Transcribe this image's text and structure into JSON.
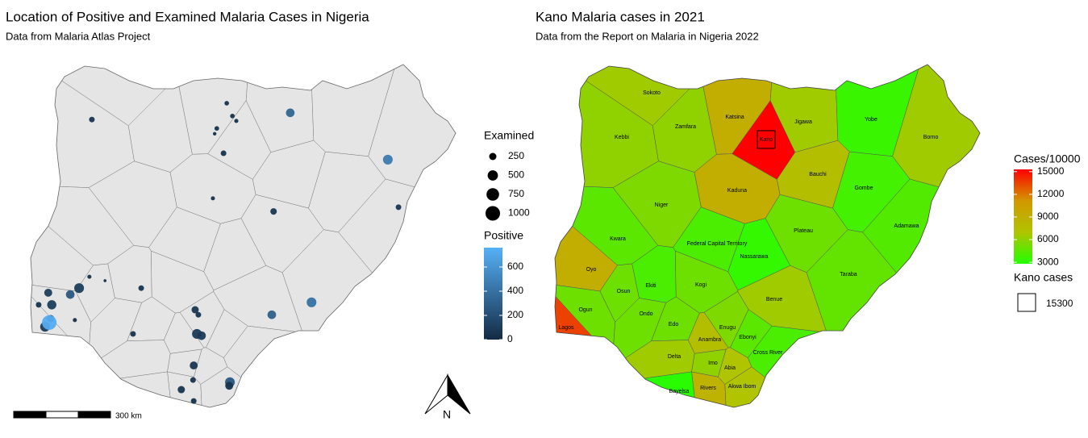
{
  "left": {
    "title": "Location of Positive and Examined Malaria Cases in Nigeria",
    "subtitle": "Data from Malaria Atlas Project",
    "points": {
      "lon": [
        4.38,
        8.18,
        8.34,
        8.45,
        7.9,
        7.84,
        8.09,
        9.97,
        12.72,
        13.02,
        7.79,
        9.5,
        4.02,
        3.77,
        3.15,
        4.31,
        4.75,
        5.77,
        3.25,
        2.88,
        3.22,
        3.06,
        3.18,
        3.9,
        5.54,
        7.29,
        7.38,
        7.34,
        7.47,
        9.45,
        10.57,
        7.25,
        7.23,
        8.27,
        8.25,
        6.9,
        7.25
      ],
      "lat": [
        12.35,
        12.81,
        12.45,
        12.31,
        12.1,
        11.95,
        11.4,
        12.54,
        11.22,
        9.88,
        10.13,
        9.76,
        7.6,
        7.42,
        7.47,
        7.92,
        7.81,
        7.6,
        7.13,
        7.13,
        6.74,
        6.51,
        6.63,
        6.7,
        6.31,
        6.99,
        6.85,
        6.31,
        6.26,
        6.85,
        7.2,
        5.42,
        5.01,
        4.95,
        4.85,
        4.74,
        4.42
      ],
      "examined": [
        150,
        100,
        100,
        80,
        100,
        60,
        150,
        350,
        450,
        150,
        80,
        200,
        450,
        350,
        300,
        80,
        40,
        150,
        400,
        150,
        250,
        450,
        1000,
        80,
        150,
        250,
        150,
        450,
        350,
        350,
        450,
        300,
        150,
        450,
        300,
        250,
        150
      ],
      "positive": [
        50,
        40,
        30,
        30,
        40,
        20,
        40,
        330,
        450,
        60,
        20,
        60,
        100,
        250,
        100,
        20,
        10,
        50,
        100,
        40,
        60,
        100,
        740,
        20,
        40,
        60,
        50,
        80,
        80,
        300,
        400,
        60,
        40,
        250,
        50,
        50,
        40
      ]
    },
    "size_legend": {
      "title": "Examined",
      "values": [
        250,
        500,
        750,
        1000
      ]
    },
    "color_legend": {
      "title": "Positive",
      "lim": [
        0,
        760
      ],
      "ticks": [
        0,
        200,
        400,
        600
      ],
      "colors": [
        "#132b43",
        "#56b1f7"
      ]
    },
    "scale_bar": "300 km",
    "north": "N"
  },
  "right": {
    "title": "Kano Malaria cases in 2021",
    "subtitle": "Data from the Report on Malaria in Nigeria 2022",
    "states": {
      "names": [
        "Sokoto",
        "Kebbi",
        "Zamfara",
        "Katsina",
        "Kano",
        "Jigawa",
        "Yobe",
        "Borno",
        "Bauchi",
        "Gombe",
        "Kaduna",
        "Niger",
        "Kwara",
        "Federal Capital Territory",
        "Nassarawa",
        "Plateau",
        "Adamawa",
        "Taraba",
        "Oyo",
        "Osun",
        "Ekiti",
        "Kogi",
        "Benue",
        "Ogun",
        "Ondo",
        "Edo",
        "Lagos",
        "Enugu",
        "Ebonyi",
        "Anambra",
        "Cross River",
        "Delta",
        "Imo",
        "Abia",
        "Rivers",
        "Akwa Ibom",
        "Bayelsa"
      ],
      "values": [
        6500,
        6000,
        6000,
        9000,
        15300,
        6500,
        3500,
        6500,
        7500,
        3800,
        9000,
        5500,
        4500,
        4000,
        3300,
        5000,
        4200,
        4700,
        9000,
        5000,
        4000,
        5000,
        6500,
        5000,
        5000,
        5000,
        13500,
        5500,
        4500,
        7500,
        4000,
        6500,
        6000,
        7000,
        8500,
        7000,
        3000
      ]
    },
    "color_legend": {
      "title": "Cases/10000",
      "lim": [
        2800,
        15300
      ],
      "ticks": [
        3000,
        6000,
        9000,
        12000,
        15000
      ],
      "colors": [
        "#22ff00",
        "#b0c400",
        "#d29700",
        "#ff0000"
      ]
    },
    "kano_legend": {
      "title": "Kano cases",
      "value": 15300
    }
  }
}
